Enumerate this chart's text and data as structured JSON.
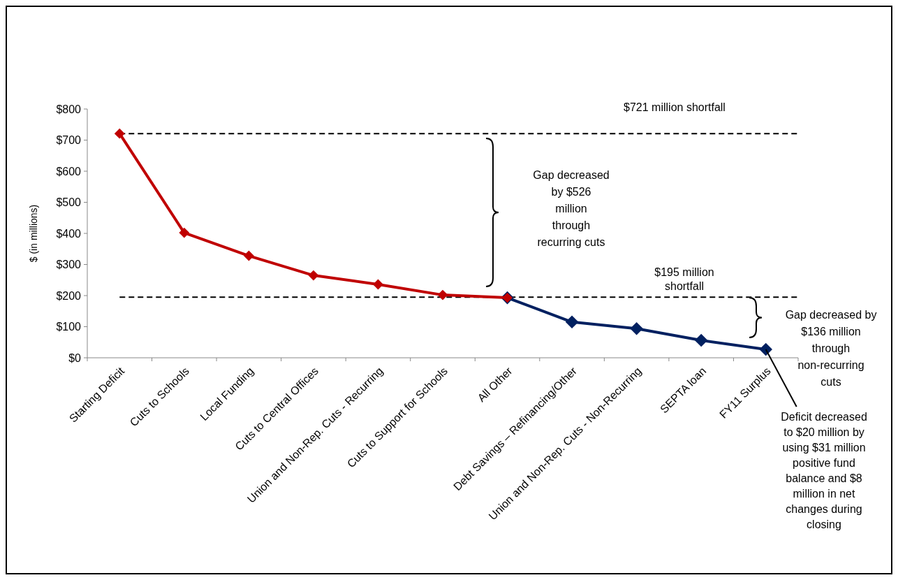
{
  "chart_data": {
    "type": "line",
    "ylabel": "$ (in millions)",
    "categories": [
      "Starting Deficit",
      "Cuts to Schools",
      "Local Funding",
      "Cuts to Central Offices",
      "Union and Non-Rep. Cuts - Recurring",
      "Cuts to  Support for Schools",
      "All Other",
      "Debt Savings – Refinancing/Other",
      "Union and Non-Rep. Cuts - Non-Recurring",
      "SEPTA loan",
      "FY11 Surplus"
    ],
    "series": [
      {
        "color": "#c00000",
        "values": [
          721,
          402,
          328,
          265,
          236,
          202,
          193,
          null,
          null,
          null,
          null
        ]
      },
      {
        "color": "#002060",
        "values": [
          null,
          null,
          null,
          null,
          null,
          null,
          193,
          115,
          94,
          56,
          27
        ]
      }
    ],
    "ylim": [
      0,
      800
    ],
    "yticks": [
      {
        "value": 0,
        "label": "$0"
      },
      {
        "value": 100,
        "label": "$100"
      },
      {
        "value": 200,
        "label": "$200"
      },
      {
        "value": 300,
        "label": "$300"
      },
      {
        "value": 400,
        "label": "$400"
      },
      {
        "value": 500,
        "label": "$500"
      },
      {
        "value": 600,
        "label": "$600"
      },
      {
        "value": 700,
        "label": "$700"
      },
      {
        "value": 800,
        "label": "$800"
      }
    ],
    "grid": false,
    "marker": "diamond",
    "line_style": "solid",
    "ref_lines": [
      {
        "axis": "y",
        "value": 721,
        "label": "$721 million shortfall",
        "color": "#000000",
        "line_style": "dashed"
      },
      {
        "axis": "y",
        "value": 195,
        "label": "$195 million shortfall",
        "color": "#000000",
        "line_style": "dashed"
      }
    ],
    "annotations": [
      "Gap decreased by $526 million through recurring cuts",
      "Gap decreased by $136 million through non-recurring cuts",
      {
        "text": "Deficit decreased to $20 million by using $31 million positive fund balance and $8 million in net changes during closing",
        "x": "FY11 Surplus",
        "y": 27
      }
    ]
  }
}
